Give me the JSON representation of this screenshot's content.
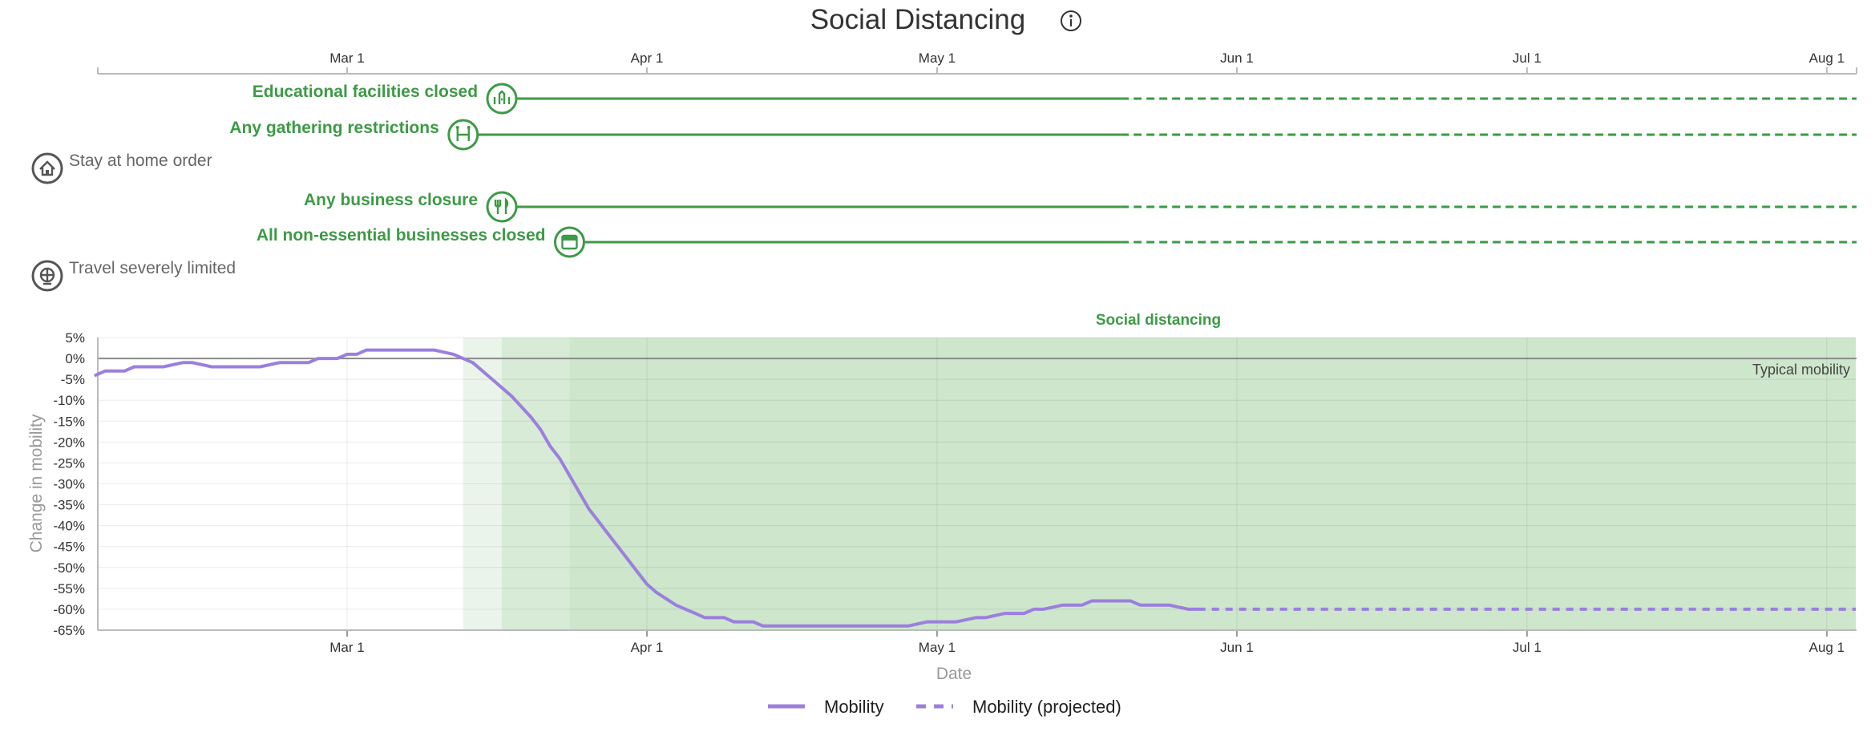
{
  "title": "Social Distancing",
  "info_icon": "info-icon",
  "colors": {
    "green": "#3d9a46",
    "green_band_light": "#eaf4ea",
    "green_band": "#cde6cc",
    "purple": "#9b7fdd",
    "gray": "#666666",
    "axis": "#999999"
  },
  "timeline": {
    "date_ticks": [
      "Mar 1",
      "Apr 1",
      "May 1",
      "Jun 1",
      "Jul 1",
      "Aug 1"
    ],
    "measures": [
      {
        "label": "Educational facilities closed",
        "icon": "school-icon",
        "active": true,
        "start": "2020-03-17",
        "solid_end": "2020-05-20"
      },
      {
        "label": "Any gathering restrictions",
        "icon": "gathering-icon",
        "active": true,
        "start": "2020-03-13",
        "solid_end": "2020-05-20"
      },
      {
        "label": "Stay at home order",
        "icon": "home-icon",
        "active": false
      },
      {
        "label": "Any business closure",
        "icon": "fork-knife-icon",
        "active": true,
        "start": "2020-03-17",
        "solid_end": "2020-05-20"
      },
      {
        "label": "All non-essential businesses closed",
        "icon": "store-icon",
        "active": true,
        "start": "2020-03-24",
        "solid_end": "2020-05-20"
      },
      {
        "label": "Travel severely limited",
        "icon": "globe-icon",
        "active": false
      }
    ]
  },
  "band_label": "Social distancing",
  "typical_label": "Typical mobility",
  "legend": [
    {
      "label": "Mobility",
      "style": "solid"
    },
    {
      "label": "Mobility (projected)",
      "style": "dashed"
    }
  ],
  "chart_data": {
    "type": "line",
    "xlabel": "Date",
    "ylabel": "Change in mobility",
    "ylim": [
      -65,
      5
    ],
    "y_ticks": [
      "5%",
      "0%",
      "-5%",
      "-10%",
      "-15%",
      "-20%",
      "-25%",
      "-30%",
      "-35%",
      "-40%",
      "-45%",
      "-50%",
      "-55%",
      "-60%",
      "-65%"
    ],
    "x_ticks": [
      "Mar 1",
      "Apr 1",
      "May 1",
      "Jun 1",
      "Jul 1",
      "Aug 1"
    ],
    "bands": [
      {
        "start": "2020-03-13",
        "end": "2020-03-17",
        "shade": "light"
      },
      {
        "start": "2020-03-17",
        "end": "2020-03-24",
        "shade": "medium"
      },
      {
        "start": "2020-03-24",
        "end": "2020-08-04",
        "shade": "dark"
      }
    ],
    "series": [
      {
        "name": "Mobility",
        "style": "solid",
        "points": [
          [
            "2020-02-04",
            -4
          ],
          [
            "2020-02-05",
            -3
          ],
          [
            "2020-02-07",
            -3
          ],
          [
            "2020-02-08",
            -2
          ],
          [
            "2020-02-10",
            -2
          ],
          [
            "2020-02-11",
            -2
          ],
          [
            "2020-02-13",
            -1
          ],
          [
            "2020-02-14",
            -1
          ],
          [
            "2020-02-16",
            -2
          ],
          [
            "2020-02-18",
            -2
          ],
          [
            "2020-02-20",
            -2
          ],
          [
            "2020-02-21",
            -2
          ],
          [
            "2020-02-23",
            -1
          ],
          [
            "2020-02-24",
            -1
          ],
          [
            "2020-02-26",
            -1
          ],
          [
            "2020-02-27",
            0
          ],
          [
            "2020-02-29",
            0
          ],
          [
            "2020-03-01",
            1
          ],
          [
            "2020-03-02",
            1
          ],
          [
            "2020-03-03",
            2
          ],
          [
            "2020-03-05",
            2
          ],
          [
            "2020-03-07",
            2
          ],
          [
            "2020-03-09",
            2
          ],
          [
            "2020-03-10",
            2
          ],
          [
            "2020-03-12",
            1
          ],
          [
            "2020-03-14",
            -1
          ],
          [
            "2020-03-16",
            -5
          ],
          [
            "2020-03-18",
            -9
          ],
          [
            "2020-03-20",
            -14
          ],
          [
            "2020-03-21",
            -17
          ],
          [
            "2020-03-22",
            -21
          ],
          [
            "2020-03-23",
            -24
          ],
          [
            "2020-03-24",
            -28
          ],
          [
            "2020-03-25",
            -32
          ],
          [
            "2020-03-26",
            -36
          ],
          [
            "2020-03-27",
            -39
          ],
          [
            "2020-03-28",
            -42
          ],
          [
            "2020-03-29",
            -45
          ],
          [
            "2020-03-30",
            -48
          ],
          [
            "2020-03-31",
            -51
          ],
          [
            "2020-04-01",
            -54
          ],
          [
            "2020-04-02",
            -56
          ],
          [
            "2020-04-04",
            -59
          ],
          [
            "2020-04-06",
            -61
          ],
          [
            "2020-04-07",
            -62
          ],
          [
            "2020-04-09",
            -62
          ],
          [
            "2020-04-10",
            -63
          ],
          [
            "2020-04-12",
            -63
          ],
          [
            "2020-04-13",
            -64
          ],
          [
            "2020-04-17",
            -64
          ],
          [
            "2020-04-20",
            -64
          ],
          [
            "2020-04-23",
            -64
          ],
          [
            "2020-04-26",
            -64
          ],
          [
            "2020-04-28",
            -64
          ],
          [
            "2020-04-30",
            -63
          ],
          [
            "2020-05-02",
            -63
          ],
          [
            "2020-05-03",
            -63
          ],
          [
            "2020-05-05",
            -62
          ],
          [
            "2020-05-06",
            -62
          ],
          [
            "2020-05-08",
            -61
          ],
          [
            "2020-05-10",
            -61
          ],
          [
            "2020-05-11",
            -60
          ],
          [
            "2020-05-12",
            -60
          ],
          [
            "2020-05-14",
            -59
          ],
          [
            "2020-05-16",
            -59
          ],
          [
            "2020-05-17",
            -58
          ],
          [
            "2020-05-19",
            -58
          ],
          [
            "2020-05-21",
            -58
          ],
          [
            "2020-05-22",
            -59
          ],
          [
            "2020-05-24",
            -59
          ],
          [
            "2020-05-25",
            -59
          ],
          [
            "2020-05-27",
            -60
          ],
          [
            "2020-05-28",
            -60
          ]
        ]
      },
      {
        "name": "Mobility (projected)",
        "style": "dashed",
        "points": [
          [
            "2020-05-28",
            -60
          ],
          [
            "2020-08-04",
            -60
          ]
        ]
      }
    ]
  }
}
